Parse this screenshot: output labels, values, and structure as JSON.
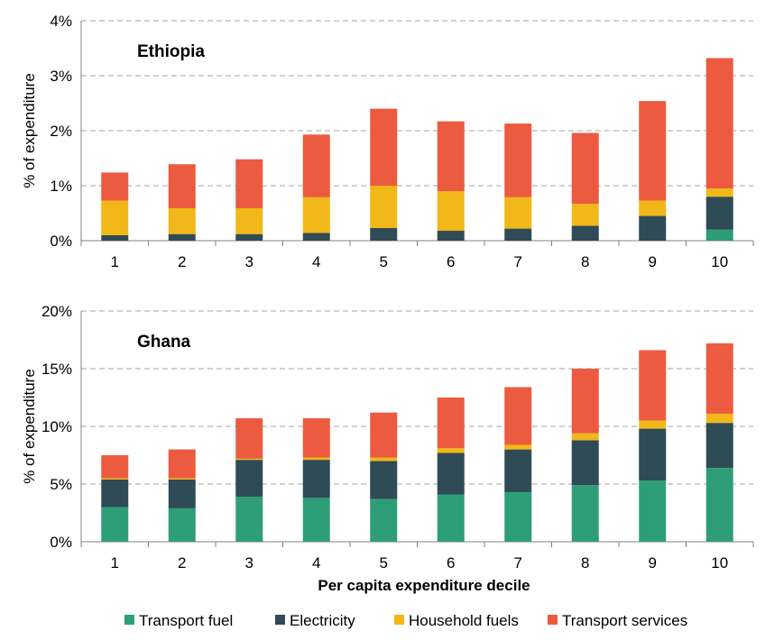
{
  "colors": {
    "transport_fuel": "#2e9e78",
    "electricity": "#2f4b55",
    "household_fuels": "#f2b718",
    "transport_services": "#ec5b3f",
    "grid": "#a6a6a6",
    "axis": "#808080"
  },
  "xlabel": "Per capita expenditure decile",
  "legend": [
    {
      "key": "transport_fuel",
      "label": "Transport fuel"
    },
    {
      "key": "electricity",
      "label": "Electricity"
    },
    {
      "key": "household_fuels",
      "label": "Household fuels"
    },
    {
      "key": "transport_services",
      "label": "Transport services"
    }
  ],
  "chart_data": [
    {
      "type": "bar",
      "stacked": true,
      "title": "Ethiopia",
      "ylabel": "% of expenditure",
      "ylim": [
        0,
        4
      ],
      "yticks": [
        0,
        1,
        2,
        3,
        4
      ],
      "ytick_labels": [
        "0%",
        "1%",
        "2%",
        "3%",
        "4%"
      ],
      "grid": true,
      "categories": [
        "1",
        "2",
        "3",
        "4",
        "5",
        "6",
        "7",
        "8",
        "9",
        "10"
      ],
      "series": [
        {
          "key": "transport_fuel",
          "name": "Transport fuel",
          "values": [
            0.0,
            0.0,
            0.0,
            0.0,
            0.0,
            0.0,
            0.0,
            0.0,
            0.0,
            0.2
          ]
        },
        {
          "key": "electricity",
          "name": "Electricity",
          "values": [
            0.1,
            0.12,
            0.12,
            0.14,
            0.23,
            0.18,
            0.22,
            0.27,
            0.45,
            0.6
          ]
        },
        {
          "key": "household_fuels",
          "name": "Household fuels",
          "values": [
            0.63,
            0.47,
            0.47,
            0.65,
            0.77,
            0.72,
            0.57,
            0.4,
            0.28,
            0.15
          ]
        },
        {
          "key": "transport_services",
          "name": "Transport services",
          "values": [
            0.51,
            0.8,
            0.89,
            1.14,
            1.4,
            1.27,
            1.34,
            1.29,
            1.81,
            2.37
          ]
        }
      ]
    },
    {
      "type": "bar",
      "stacked": true,
      "title": "Ghana",
      "ylabel": "% of expenditure",
      "ylim": [
        0,
        20
      ],
      "yticks": [
        0,
        5,
        10,
        15,
        20
      ],
      "ytick_labels": [
        "0%",
        "5%",
        "10%",
        "15%",
        "20%"
      ],
      "grid": true,
      "categories": [
        "1",
        "2",
        "3",
        "4",
        "5",
        "6",
        "7",
        "8",
        "9",
        "10"
      ],
      "series": [
        {
          "key": "transport_fuel",
          "name": "Transport fuel",
          "values": [
            3.0,
            2.9,
            3.9,
            3.8,
            3.7,
            4.1,
            4.3,
            4.9,
            5.3,
            6.4
          ]
        },
        {
          "key": "electricity",
          "name": "Electricity",
          "values": [
            2.4,
            2.5,
            3.2,
            3.3,
            3.3,
            3.6,
            3.7,
            3.9,
            4.5,
            3.9
          ]
        },
        {
          "key": "household_fuels",
          "name": "Household fuels",
          "values": [
            0.1,
            0.1,
            0.1,
            0.2,
            0.3,
            0.4,
            0.4,
            0.6,
            0.7,
            0.8
          ]
        },
        {
          "key": "transport_services",
          "name": "Transport services",
          "values": [
            2.0,
            2.5,
            3.5,
            3.4,
            3.9,
            4.4,
            5.0,
            5.6,
            6.1,
            6.1
          ]
        }
      ]
    }
  ]
}
